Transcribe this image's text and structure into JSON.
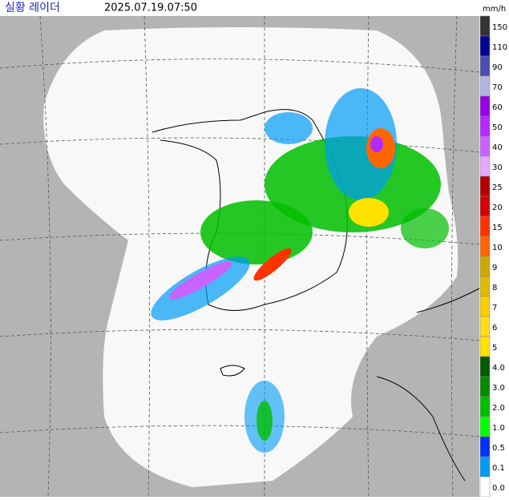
{
  "header": {
    "title": "실황 레이더",
    "timestamp": "2025.07.19.07:50",
    "unit": "mm/h"
  },
  "legend": [
    {
      "label": "150",
      "color": "#333333"
    },
    {
      "label": "110",
      "color": "#000390"
    },
    {
      "label": "90",
      "color": "#4c4eb1"
    },
    {
      "label": "70",
      "color": "#b3b4de"
    },
    {
      "label": "60",
      "color": "#9300e4"
    },
    {
      "label": "50",
      "color": "#b329ff"
    },
    {
      "label": "40",
      "color": "#c963ff"
    },
    {
      "label": "30",
      "color": "#e0a9ff"
    },
    {
      "label": "25",
      "color": "#b40000"
    },
    {
      "label": "20",
      "color": "#d20000"
    },
    {
      "label": "15",
      "color": "#ff3200"
    },
    {
      "label": "10",
      "color": "#ff6600"
    },
    {
      "label": "9",
      "color": "#ccaa00"
    },
    {
      "label": "8",
      "color": "#e0b900"
    },
    {
      "label": "7",
      "color": "#f9cd00"
    },
    {
      "label": "6",
      "color": "#ffdc1f"
    },
    {
      "label": "5",
      "color": "#ffe100"
    },
    {
      "label": "4.0",
      "color": "#005a00"
    },
    {
      "label": "3.0",
      "color": "#008c00"
    },
    {
      "label": "2.0",
      "color": "#00be00"
    },
    {
      "label": "1.0",
      "color": "#00ff00"
    },
    {
      "label": "0.5",
      "color": "#0033f5"
    },
    {
      "label": "0.1",
      "color": "#009bf5"
    },
    {
      "label": "0.0",
      "color": "#ffffff"
    }
  ]
}
